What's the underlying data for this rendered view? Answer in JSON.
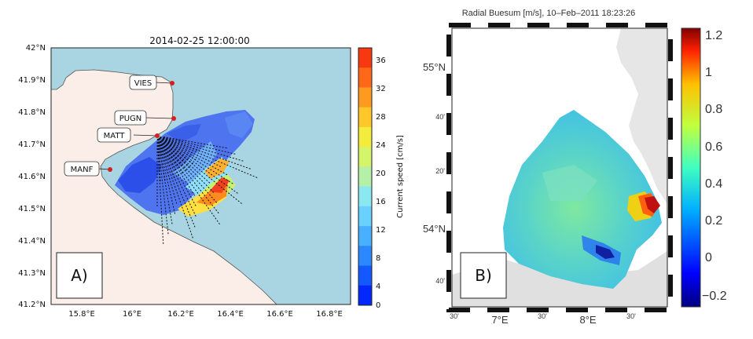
{
  "panel_a": {
    "title": "2014-02-25 12:00:00",
    "label": "A)",
    "lat_ticks": [
      "42°N",
      "41.9°N",
      "41.8°N",
      "41.7°N",
      "41.6°N",
      "41.5°N",
      "41.4°N",
      "41.3°N",
      "41.2°N"
    ],
    "lon_ticks": [
      "15.8°E",
      "16°E",
      "16.2°E",
      "16.4°E",
      "16.6°E",
      "16.8°E"
    ],
    "colorbar_ticks": [
      "36",
      "32",
      "28",
      "24",
      "20",
      "16",
      "12",
      "8",
      "4",
      "0"
    ],
    "colorbar_label": "Current speed [cm/s]",
    "stations": [
      {
        "name": "VIES"
      },
      {
        "name": "PUGN"
      },
      {
        "name": "MATT"
      },
      {
        "name": "MANF"
      }
    ],
    "colors": {
      "sea": "#a9d4e2",
      "land": "#fbeee9",
      "station": "#d42020"
    }
  },
  "panel_b": {
    "title": "Radial Buesum [m/s],  10–Feb–2011 18:23:26",
    "label": "B)",
    "lat_labels": [
      "55°N",
      "40'",
      "20'",
      "54°N",
      "40'"
    ],
    "lon_labels": [
      "30'",
      "7°E",
      "30'",
      "8°E",
      "30'"
    ],
    "colorbar_ticks": [
      "1.2",
      "1",
      "0.8",
      "0.6",
      "0.4",
      "0.2",
      "0",
      "−0.2"
    ]
  }
}
